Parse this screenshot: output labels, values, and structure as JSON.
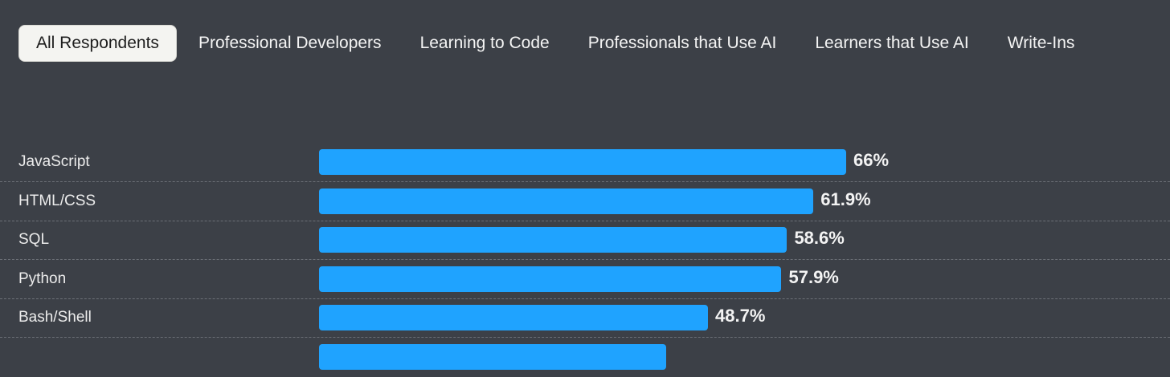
{
  "tabs": [
    {
      "label": "All Respondents",
      "active": true
    },
    {
      "label": "Professional Developers",
      "active": false
    },
    {
      "label": "Learning to Code",
      "active": false
    },
    {
      "label": "Professionals that Use AI",
      "active": false
    },
    {
      "label": "Learners that Use AI",
      "active": false
    },
    {
      "label": "Write-Ins",
      "active": false
    }
  ],
  "colors": {
    "background": "#3c4047",
    "bar": "#1fa3ff",
    "active_tab_bg": "#f4f4f1"
  },
  "chart_data": {
    "type": "bar",
    "orientation": "horizontal",
    "categories": [
      "JavaScript",
      "HTML/CSS",
      "SQL",
      "Python",
      "Bash/Shell"
    ],
    "values": [
      66,
      61.9,
      58.6,
      57.9,
      48.7
    ],
    "value_labels": [
      "66%",
      "61.9%",
      "58.6%",
      "57.9%",
      "48.7%"
    ],
    "unit": "%",
    "xlim": [
      0,
      100
    ],
    "grid": false
  }
}
